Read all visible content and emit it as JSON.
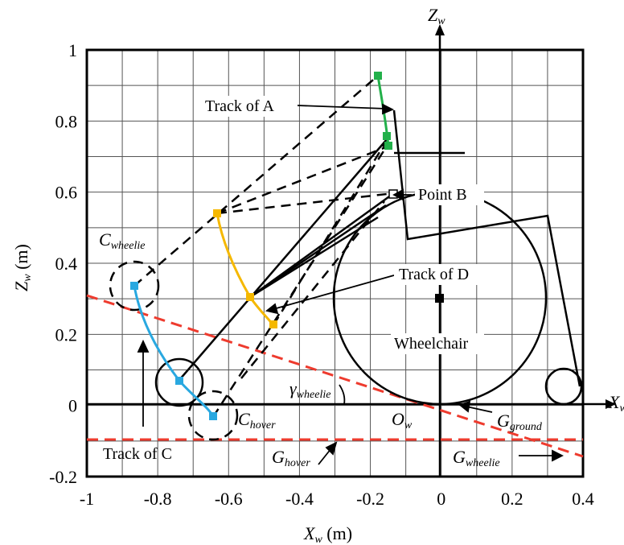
{
  "axes": {
    "x_label": "X",
    "x_label_sub": "w",
    "x_unit": " (m)",
    "y_label": "Z",
    "y_label_sub": "w",
    "y_unit": " (m)",
    "x_ticks": [
      "-1",
      "-0.8",
      "-0.6",
      "-0.4",
      "-0.2",
      "0",
      "0.2",
      "0.4"
    ],
    "y_ticks": [
      "1",
      "0.8",
      "0.6",
      "0.4",
      "0.2",
      "0",
      "-0.2"
    ],
    "world_x_axis": "X",
    "world_x_axis_sub": "w",
    "world_z_axis": "Z",
    "world_z_axis_sub": "w",
    "origin": "O",
    "origin_sub": "w"
  },
  "labels": {
    "track_a": "Track of A",
    "point_b": "Point B",
    "track_d": "Track of D",
    "track_c": "Track of C",
    "wheelchair": "Wheelchair",
    "c_wheelie": "C",
    "c_wheelie_sub": "wheelie",
    "c_hover": "C",
    "c_hover_sub": "hover",
    "gamma": "γ",
    "gamma_sub": "wheelie",
    "g_ground": "G",
    "g_ground_sub": "ground",
    "g_hover": "G",
    "g_hover_sub": "hover",
    "g_wheelie": "G",
    "g_wheelie_sub": "wheelie"
  },
  "colors": {
    "track_a": "#22b04a",
    "track_d": "#f5b800",
    "track_c": "#29a8e0",
    "ground_lines": "#ee3b2e",
    "structure": "#000000"
  }
}
